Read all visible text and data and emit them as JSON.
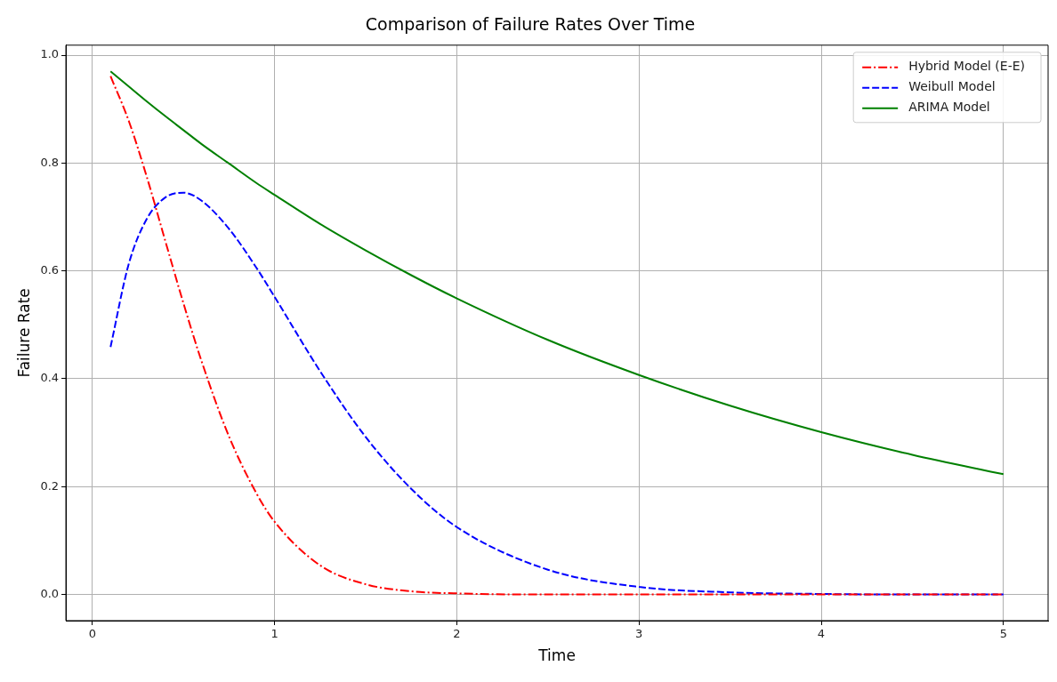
{
  "chart_data": {
    "type": "line",
    "title": "Comparison of Failure Rates Over Time",
    "xlabel": "Time",
    "ylabel": "Failure Rate",
    "x": [
      0.1,
      0.2,
      0.3,
      0.4,
      0.5,
      0.6,
      0.75,
      0.9,
      1,
      1.25,
      1.5,
      1.75,
      2,
      2.5,
      3,
      3.5,
      4,
      4.5,
      5
    ],
    "series": [
      {
        "name": "Hybrid Model (E-E)",
        "color": "#ff0000",
        "line_style": "dashdot",
        "values": [
          0.961,
          0.878,
          0.773,
          0.656,
          0.54,
          0.432,
          0.293,
          0.188,
          0.135,
          0.054,
          0.019,
          0.006,
          0.002,
          0,
          0,
          0,
          0,
          0,
          0
        ]
      },
      {
        "name": "Weibull Model",
        "color": "#0000ff",
        "line_style": "dashed",
        "values": [
          0.459,
          0.613,
          0.697,
          0.736,
          0.745,
          0.73,
          0.678,
          0.606,
          0.552,
          0.414,
          0.292,
          0.196,
          0.125,
          0.046,
          0.014,
          0.004,
          0.001,
          0,
          0
        ]
      },
      {
        "name": "ARIMA Model",
        "color": "#008000",
        "line_style": "solid",
        "values": [
          0.97,
          0.942,
          0.914,
          0.887,
          0.861,
          0.835,
          0.799,
          0.763,
          0.741,
          0.687,
          0.638,
          0.592,
          0.549,
          0.472,
          0.407,
          0.35,
          0.301,
          0.259,
          0.223
        ]
      }
    ],
    "xlim": [
      -0.145,
      5.245
    ],
    "xticks": [
      0,
      1,
      2,
      3,
      4,
      5
    ],
    "ylim": [
      -0.0485,
      1.0185
    ],
    "yticks": [
      {
        "value": 0,
        "label": "0.0"
      },
      {
        "value": 0.2,
        "label": "0.2"
      },
      {
        "value": 0.4,
        "label": "0.4"
      },
      {
        "value": 0.6,
        "label": "0.6"
      },
      {
        "value": 0.8,
        "label": "0.8"
      },
      {
        "value": 1,
        "label": "1.0"
      }
    ],
    "grid": true,
    "legend": "top right",
    "marker": "none"
  }
}
